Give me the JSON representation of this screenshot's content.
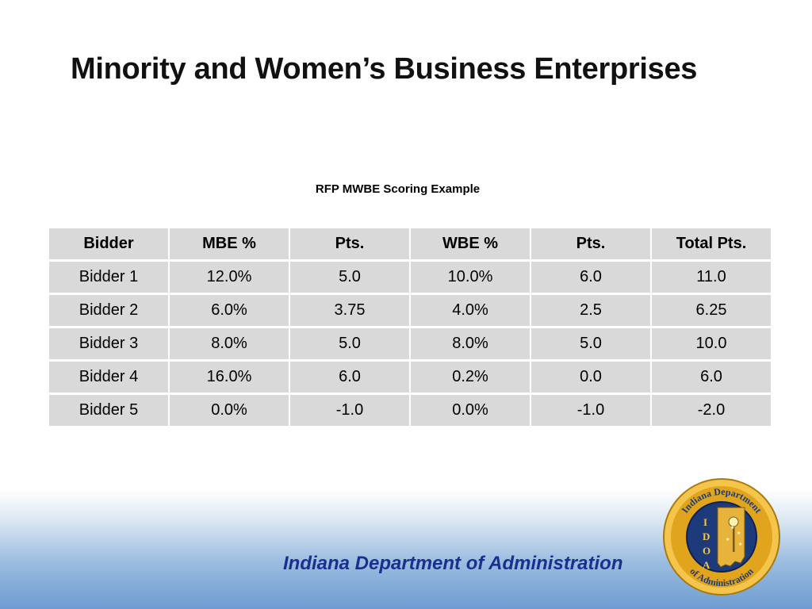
{
  "slide": {
    "title": "Minority and Women’s Business Enterprises",
    "subtitle": "RFP MWBE Scoring Example"
  },
  "table": {
    "headers": [
      "Bidder",
      "MBE %",
      "Pts.",
      "WBE %",
      "Pts.",
      "Total Pts."
    ],
    "rows": [
      [
        "Bidder 1",
        "12.0%",
        "5.0",
        "10.0%",
        "6.0",
        "11.0"
      ],
      [
        "Bidder 2",
        "6.0%",
        "3.75",
        "4.0%",
        "2.5",
        "6.25"
      ],
      [
        "Bidder 3",
        "8.0%",
        "5.0",
        "8.0%",
        "5.0",
        "10.0"
      ],
      [
        "Bidder 4",
        "16.0%",
        "6.0",
        "0.2%",
        "0.0",
        "6.0"
      ],
      [
        "Bidder 5",
        "0.0%",
        "-1.0",
        "0.0%",
        "-1.0",
        "-2.0"
      ]
    ]
  },
  "footer": {
    "org_name": "Indiana Department of Administration",
    "seal": {
      "icon": "idoa-seal-icon",
      "text_top": "Indiana Department",
      "text_bottom": "of Administration",
      "letters": [
        "I",
        "D",
        "O",
        "A"
      ]
    }
  },
  "colors": {
    "title": "#111111",
    "cell_fill": "#d9d9d9",
    "footer_text": "#1b2f8f",
    "seal_ring": "#e0a51d",
    "seal_inner": "#1d3a7a",
    "seal_state": "#e8b33a"
  }
}
